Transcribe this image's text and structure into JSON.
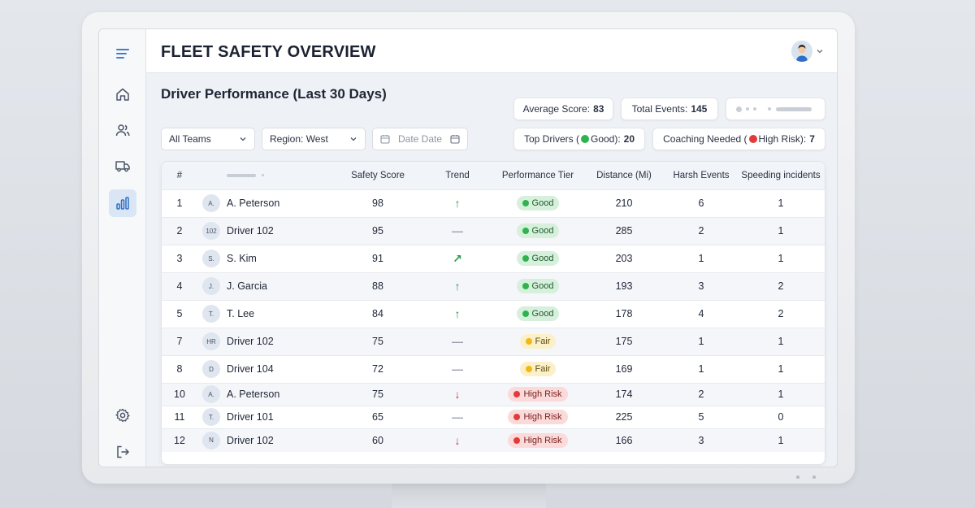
{
  "app": {
    "title": "FLEET SAFETY OVERVIEW",
    "section_title": "Driver Performance (Last 30 Days)"
  },
  "sidebar": {
    "items": [
      {
        "icon": "menu-icon"
      },
      {
        "icon": "home-icon"
      },
      {
        "icon": "users-icon"
      },
      {
        "icon": "truck-icon"
      },
      {
        "icon": "bar-chart-icon",
        "active": true
      },
      {
        "icon": "gear-icon"
      },
      {
        "icon": "logout-icon"
      }
    ]
  },
  "stats": {
    "avg_label": "Average Score:",
    "avg_value": "83",
    "events_label": "Total Events:",
    "events_value": "145",
    "top_label_pre": "Top Drivers (",
    "top_label_post": "Good):",
    "top_value": "20",
    "coach_label_pre": "Coaching Needed (",
    "coach_label_post": "High Risk):",
    "coach_value": "7"
  },
  "filters": {
    "team": "All Teams",
    "region": "Region: West",
    "date": "Date Date"
  },
  "table": {
    "headers": [
      "#",
      "",
      "Safety Score",
      "Trend",
      "Performance Tier",
      "Distance (Mi)",
      "Harsh Events",
      "Speeding incidents"
    ],
    "rows": [
      {
        "rank": "1",
        "initials": "A.",
        "name": "A. Peterson",
        "score": "98",
        "trend": "up",
        "tier": "Good",
        "tier_class": "good",
        "distance": "210",
        "harsh": "6",
        "speeding": "1"
      },
      {
        "rank": "2",
        "initials": "102",
        "name": "Driver 102",
        "score": "95",
        "trend": "flat",
        "tier": "Good",
        "tier_class": "good",
        "distance": "285",
        "harsh": "2",
        "speeding": "1"
      },
      {
        "rank": "3",
        "initials": "S.",
        "name": "S. Kim",
        "score": "91",
        "trend": "up-right",
        "tier": "Good",
        "tier_class": "good",
        "distance": "203",
        "harsh": "1",
        "speeding": "1"
      },
      {
        "rank": "4",
        "initials": "J.",
        "name": "J. Garcia",
        "score": "88",
        "trend": "up",
        "tier": "Good",
        "tier_class": "good",
        "distance": "193",
        "harsh": "3",
        "speeding": "2"
      },
      {
        "rank": "5",
        "initials": "T.",
        "name": "T. Lee",
        "score": "84",
        "trend": "up",
        "tier": "Good",
        "tier_class": "good",
        "distance": "178",
        "harsh": "4",
        "speeding": "2"
      },
      {
        "rank": "7",
        "initials": "HR",
        "name": "Driver 102",
        "score": "75",
        "trend": "flat",
        "tier": "Fair",
        "tier_class": "fair",
        "distance": "175",
        "harsh": "1",
        "speeding": "1"
      },
      {
        "rank": "8",
        "initials": "D",
        "name": "Driver 104",
        "score": "72",
        "trend": "flat",
        "tier": "Fair",
        "tier_class": "fair",
        "distance": "169",
        "harsh": "1",
        "speeding": "1"
      },
      {
        "rank": "10",
        "initials": "A.",
        "name": "A. Peterson",
        "score": "75",
        "trend": "down",
        "tier": "High Risk",
        "tier_class": "risk",
        "distance": "174",
        "harsh": "2",
        "speeding": "1"
      },
      {
        "rank": "11",
        "initials": "T.",
        "name": "Driver 101",
        "score": "65",
        "trend": "flat",
        "tier": "High Risk",
        "tier_class": "risk",
        "distance": "225",
        "harsh": "5",
        "speeding": "0"
      },
      {
        "rank": "12",
        "initials": "N",
        "name": "Driver 102",
        "score": "60",
        "trend": "down",
        "tier": "High Risk",
        "tier_class": "risk",
        "distance": "166",
        "harsh": "3",
        "speeding": "1"
      }
    ]
  },
  "colors": {
    "good": "#2fb34f",
    "fair": "#f2b818",
    "risk": "#e23b3b",
    "active_nav": "#dbe6f5"
  }
}
